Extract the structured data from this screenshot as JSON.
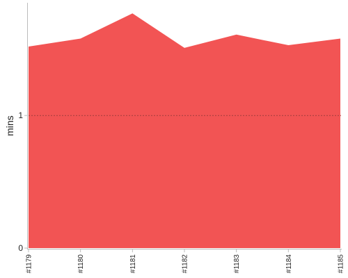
{
  "chart_data": {
    "type": "area",
    "title": "",
    "xlabel": "",
    "ylabel": "mins",
    "categories": [
      "#1179",
      "#1180",
      "#1181",
      "#1182",
      "#1183",
      "#1184",
      "#1185"
    ],
    "series": [
      {
        "values": [
          1.52,
          1.58,
          1.77,
          1.51,
          1.61,
          1.53,
          1.58
        ]
      }
    ],
    "ylim": [
      0,
      1.85
    ],
    "yticks": [
      0,
      1
    ],
    "gridlines": [
      1
    ],
    "grid": false,
    "colors": {
      "fill": "#f25454",
      "axis": "#bbbbbb",
      "gridline": "#a03c3c",
      "text": "#222222"
    }
  }
}
